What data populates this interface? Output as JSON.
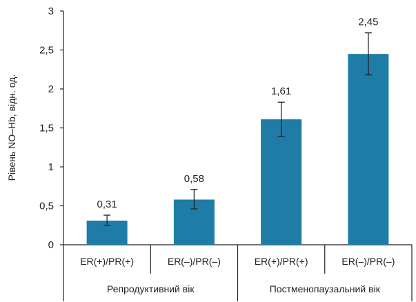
{
  "chart_data": {
    "type": "bar",
    "title": "",
    "xlabel": "",
    "ylabel": "Рівень NO–Hb, відн. од.",
    "ylim": [
      0,
      3
    ],
    "y_ticks": [
      "0",
      "0,5",
      "1",
      "1,5",
      "2",
      "2,5",
      "3"
    ],
    "y_tick_values": [
      0,
      0.5,
      1,
      1.5,
      2,
      2.5,
      3
    ],
    "grid": false,
    "legend": "none",
    "categories": [
      "ER(+)/PR(+)",
      "ER(–)/PR(–)",
      "ER(+)/PR(+)",
      "ER(–)/PR(–)"
    ],
    "groups": [
      {
        "label": "Репродуктивний вік",
        "category_indices": [
          0,
          1
        ]
      },
      {
        "label": "Постменопаузальний вік",
        "category_indices": [
          2,
          3
        ]
      }
    ],
    "values": [
      0.31,
      0.58,
      1.61,
      2.45
    ],
    "value_labels": [
      "0,31",
      "0,58",
      "1,61",
      "2,45"
    ],
    "error_low": [
      0.25,
      0.46,
      1.39,
      2.18
    ],
    "error_high": [
      0.38,
      0.71,
      1.83,
      2.72
    ],
    "bar_color": "#1e7ca7",
    "axis_color": "#222222"
  }
}
